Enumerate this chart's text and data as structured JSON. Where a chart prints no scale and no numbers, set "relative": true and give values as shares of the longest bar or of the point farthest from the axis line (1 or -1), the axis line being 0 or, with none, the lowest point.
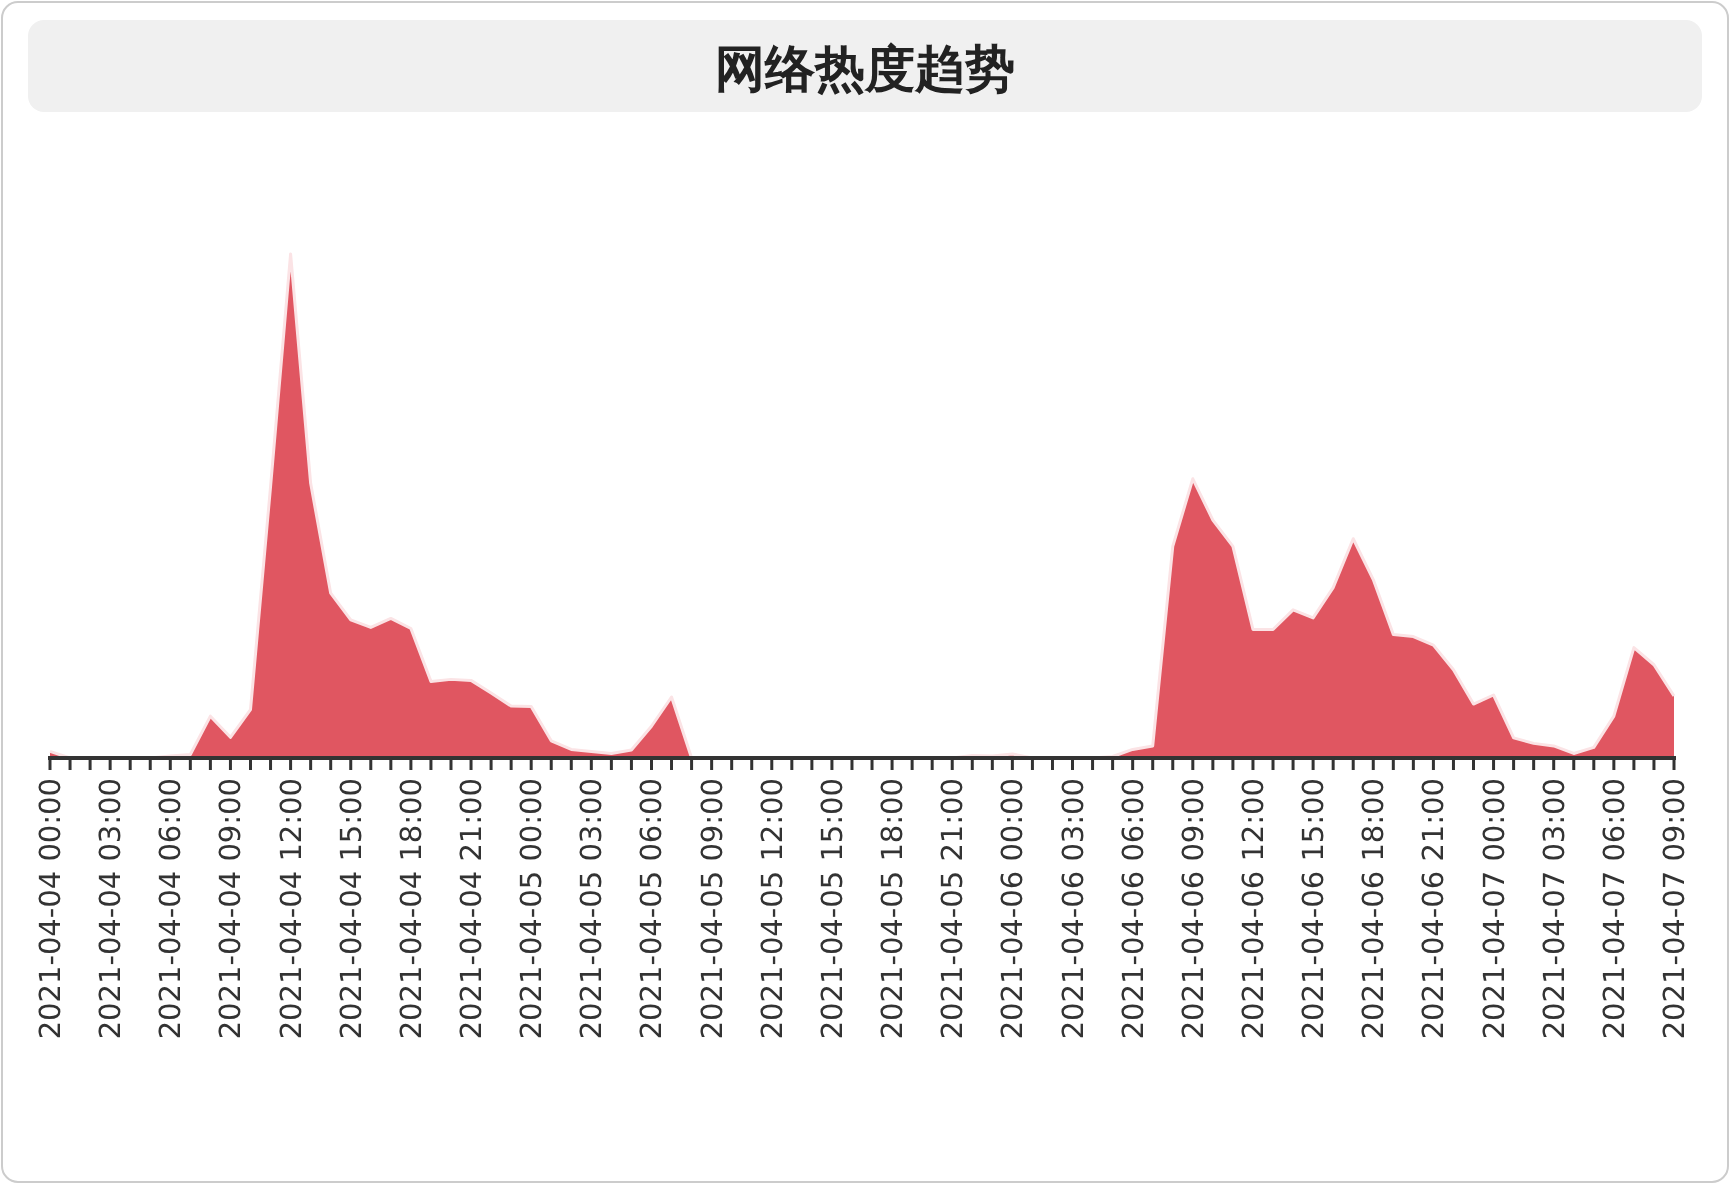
{
  "chart_data": {
    "type": "area",
    "title": "网络热度趋势",
    "relative": true,
    "color": "#e05661",
    "categories": [
      "2021-04-04 00:00",
      null,
      null,
      "2021-04-04 03:00",
      null,
      null,
      "2021-04-04 06:00",
      null,
      null,
      "2021-04-04 09:00",
      null,
      null,
      "2021-04-04 12:00",
      null,
      null,
      "2021-04-04 15:00",
      null,
      null,
      "2021-04-04 18:00",
      null,
      null,
      "2021-04-04 21:00",
      null,
      null,
      "2021-04-05 00:00",
      null,
      null,
      "2021-04-05 03:00",
      null,
      null,
      "2021-04-05 06:00",
      null,
      null,
      "2021-04-05 09:00",
      null,
      null,
      "2021-04-05 12:00",
      null,
      null,
      "2021-04-05 15:00",
      null,
      null,
      "2021-04-05 18:00",
      null,
      null,
      "2021-04-05 21:00",
      null,
      null,
      "2021-04-06 00:00",
      null,
      null,
      "2021-04-06 03:00",
      null,
      null,
      "2021-04-06 06:00",
      null,
      null,
      "2021-04-06 09:00",
      null,
      null,
      "2021-04-06 12:00",
      null,
      null,
      "2021-04-06 15:00",
      null,
      null,
      "2021-04-06 18:00",
      null,
      null,
      "2021-04-06 21:00",
      null,
      null,
      "2021-04-07 00:00",
      null,
      null,
      "2021-04-07 03:00",
      null,
      null,
      "2021-04-07 06:00",
      null,
      null,
      "2021-04-07 09:00"
    ],
    "values": [
      0.013,
      0,
      0,
      0,
      0,
      0,
      0.004,
      0.007,
      0.083,
      0.041,
      0.096,
      0.538,
      1,
      0.545,
      0.327,
      0.274,
      0.259,
      0.277,
      0.257,
      0.152,
      0.156,
      0.154,
      0.129,
      0.103,
      0.102,
      0.034,
      0.017,
      0.013,
      0.009,
      0.016,
      0.063,
      0.121,
      0,
      0,
      0,
      0,
      0,
      0,
      0,
      0,
      0,
      0,
      0,
      0,
      0,
      0,
      0.005,
      0.004,
      0.008,
      0,
      0,
      0,
      0,
      0.003,
      0.017,
      0.024,
      0.42,
      0.554,
      0.472,
      0.42,
      0.255,
      0.255,
      0.294,
      0.278,
      0.338,
      0.435,
      0.354,
      0.245,
      0.241,
      0.224,
      0.175,
      0.107,
      0.125,
      0.04,
      0.029,
      0.024,
      0.009,
      0.021,
      0.083,
      0.219,
      0.185,
      0.123
    ]
  }
}
